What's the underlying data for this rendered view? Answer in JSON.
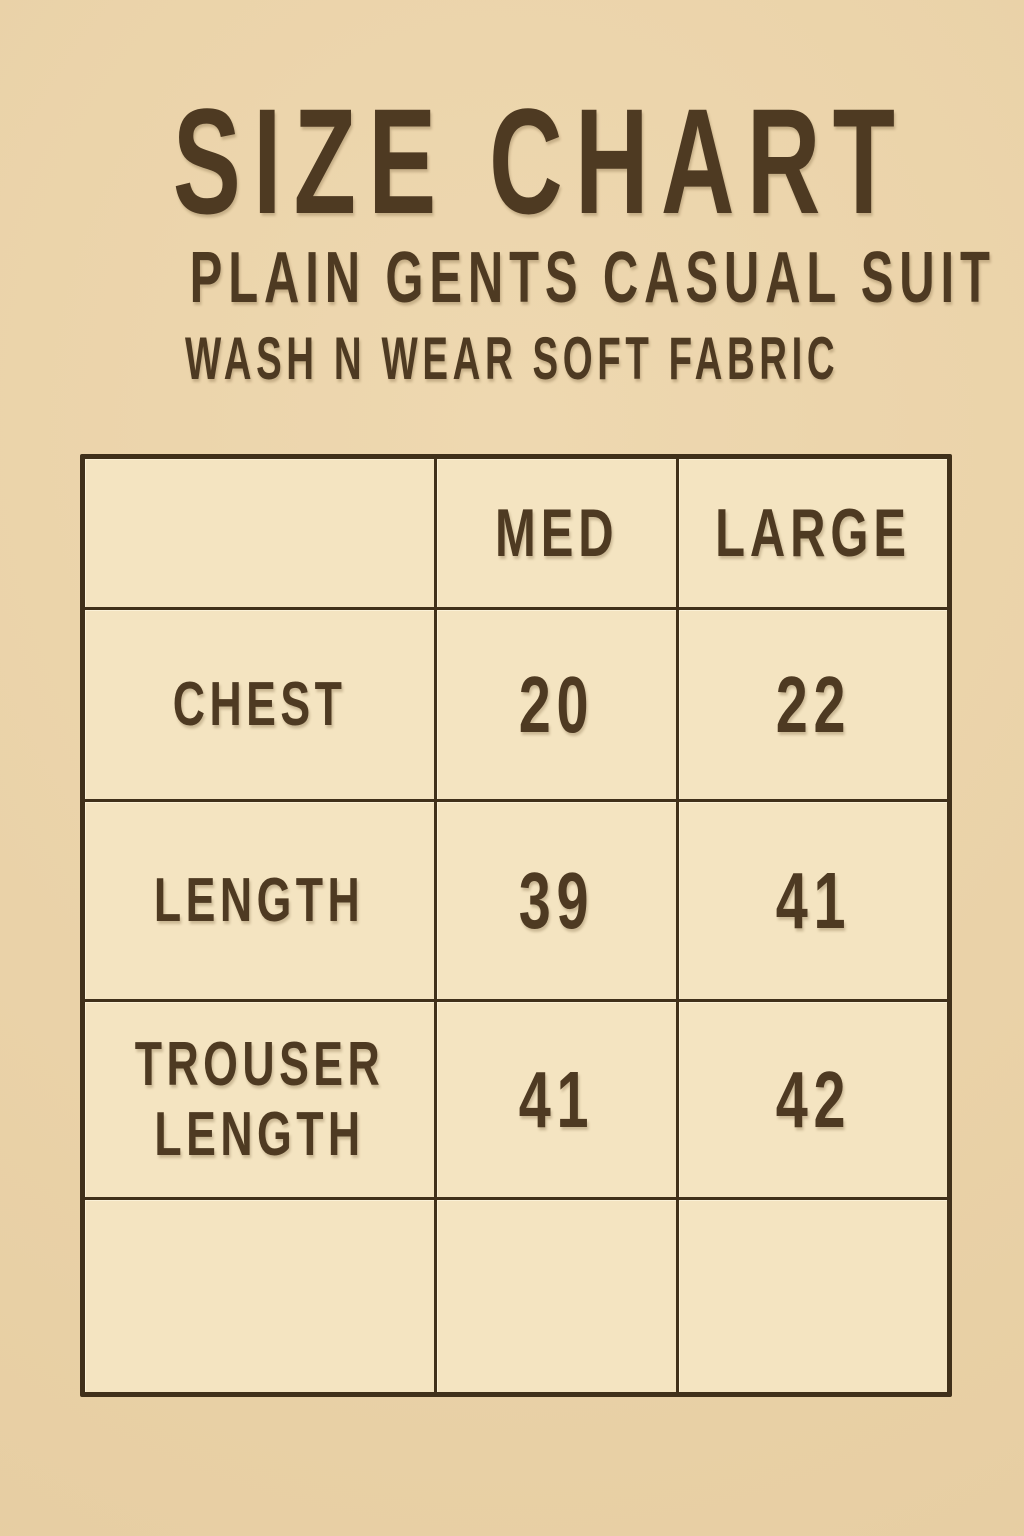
{
  "header": {
    "title": "SIZE CHART",
    "subtitle": "PLAIN GENTS CASUAL SUIT",
    "tagline": "WASH N WEAR SOFT FABRIC"
  },
  "colors": {
    "page_background": "#ebd3a9",
    "cell_background": "#f4e4c1",
    "table_border": "#40301a",
    "text": "#4e3a22"
  },
  "chart_data": {
    "type": "table",
    "title": "SIZE CHART",
    "subtitle": "PLAIN GENTS CASUAL SUIT",
    "note": "WASH N WEAR SOFT FABRIC",
    "columns": [
      "",
      "MED",
      "LARGE"
    ],
    "rows": [
      [
        "CHEST",
        "20",
        "22"
      ],
      [
        "LENGTH",
        "39",
        "41"
      ],
      [
        "TROUSER LENGTH",
        "41",
        "42"
      ],
      [
        "",
        "",
        ""
      ]
    ]
  }
}
